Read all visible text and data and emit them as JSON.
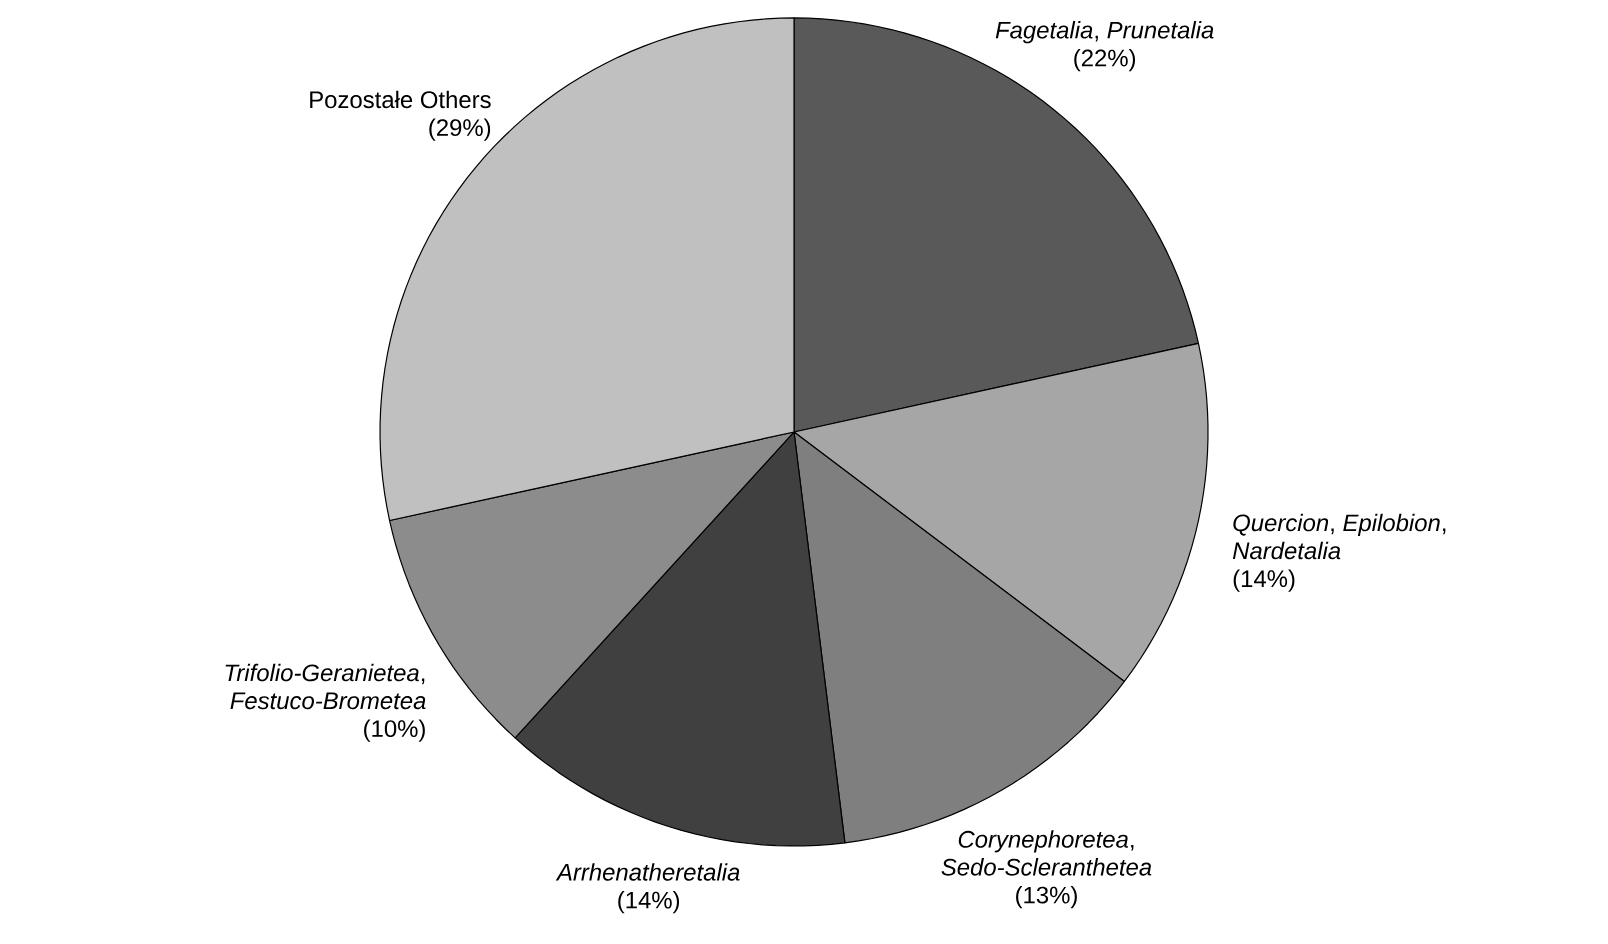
{
  "chart_data": {
    "type": "pie",
    "categories": [
      "*Fagetalia*, *Prunetalia*",
      "*Quercion*, *Epilobion*, *Nardetalia*",
      "*Corynephoretea*, *Sedo-Scleranthetea*",
      "*Arrhenatheretalia*",
      "*Trifolio-Geranietea*, *Festuco-Brometea*",
      "Pozostałe Others"
    ],
    "values": [
      22,
      14,
      13,
      14,
      10,
      29
    ],
    "value_labels": [
      "(22%)",
      "(14%)",
      "(13%)",
      "(14%)",
      "(10%)",
      "(29%)"
    ],
    "colors": [
      "#595959",
      "#a6a6a6",
      "#7f7f7f",
      "#404040",
      "#8c8c8c",
      "#c0c0c0"
    ]
  }
}
